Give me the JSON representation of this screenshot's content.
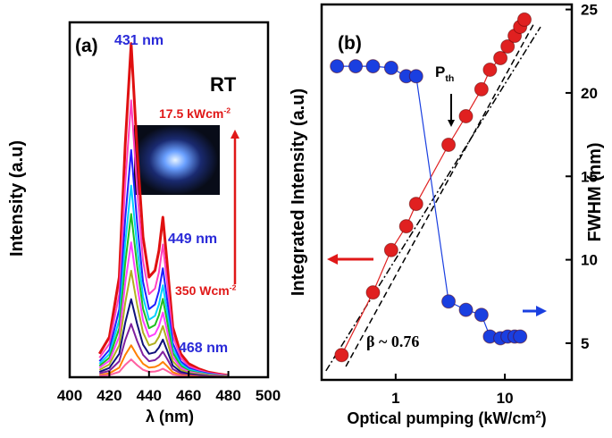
{
  "chart_data": [
    {
      "type": "line",
      "ylabel": "Intensity (a.u)",
      "xlabel": "λ (nm)",
      "xlim": [
        400,
        500
      ],
      "xticks": [
        400,
        420,
        440,
        460,
        480,
        500
      ],
      "ylim": [
        0,
        100
      ],
      "annotations": [
        {
          "text": "(a)",
          "color": "#000000"
        },
        {
          "text": "431 nm",
          "color": "#2a2ad8"
        },
        {
          "text": "RT",
          "color": "#000000"
        },
        {
          "text": "17.5 kWcm",
          "sup": "-2",
          "color": "#e01818"
        },
        {
          "text": "449 nm",
          "color": "#2a2ad8"
        },
        {
          "text": "350 Wcm",
          "sup": "-2",
          "color": "#e01818"
        },
        {
          "text": "468 nm",
          "color": "#2a2ad8"
        }
      ],
      "x": [
        415,
        420,
        425,
        428,
        431,
        434,
        437,
        440,
        443,
        445,
        447,
        449,
        452,
        456,
        460,
        465,
        470,
        475,
        480
      ],
      "series": [
        {
          "color": "#e01010",
          "width": 3,
          "values": [
            6.6,
            11.3,
            28.2,
            65.8,
            94,
            63.9,
            39.5,
            28.2,
            30.1,
            35.7,
            45.1,
            32.9,
            14.1,
            6.6,
            3.8,
            2.4,
            1.4,
            0.9,
            0.5
          ]
        },
        {
          "color": "#ff40c0",
          "width": 2,
          "values": [
            5.5,
            9.4,
            23.4,
            54.6,
            78,
            53.0,
            32.8,
            23.4,
            25.0,
            29.6,
            37.4,
            27.3,
            11.7,
            5.5,
            3.1,
            2.0,
            1.2,
            0.8,
            0.4
          ]
        },
        {
          "color": "#2020ff",
          "width": 2,
          "values": [
            4.5,
            7.7,
            19.2,
            44.8,
            64,
            43.5,
            26.9,
            19.2,
            20.5,
            24.3,
            30.7,
            22.4,
            9.6,
            4.5,
            2.6,
            1.6,
            1.0,
            0.6,
            0.3
          ]
        },
        {
          "color": "#00d0ff",
          "width": 2,
          "values": [
            3.8,
            6.5,
            16.2,
            37.8,
            54,
            36.7,
            22.7,
            16.2,
            17.3,
            20.5,
            25.9,
            18.9,
            8.1,
            3.8,
            2.2,
            1.4,
            0.8,
            0.5,
            0.3
          ]
        },
        {
          "color": "#20c020",
          "width": 2,
          "values": [
            3.2,
            5.5,
            13.8,
            32.2,
            46,
            31.3,
            19.3,
            13.8,
            14.7,
            17.5,
            22.1,
            16.1,
            6.9,
            3.2,
            1.8,
            1.2,
            0.7,
            0.5,
            0.2
          ]
        },
        {
          "color": "#ff40ff",
          "width": 2,
          "values": [
            2.7,
            4.6,
            11.4,
            26.6,
            38,
            25.8,
            16.0,
            11.4,
            12.2,
            14.4,
            18.2,
            13.3,
            5.7,
            2.7,
            1.5,
            1.0,
            0.6,
            0.4,
            0.2
          ]
        },
        {
          "color": "#b0b020",
          "width": 2,
          "values": [
            2.1,
            3.6,
            9.0,
            21.0,
            30,
            20.4,
            12.6,
            9.0,
            9.6,
            11.4,
            14.4,
            10.5,
            4.5,
            2.1,
            1.2,
            0.8,
            0.5,
            0.3,
            0.2
          ]
        },
        {
          "color": "#10107a",
          "width": 2,
          "values": [
            1.5,
            2.6,
            6.6,
            15.4,
            22,
            15.0,
            9.2,
            6.6,
            7.0,
            8.4,
            10.6,
            7.7,
            3.3,
            1.5,
            0.9,
            0.6,
            0.3,
            0.2,
            0.1
          ]
        },
        {
          "color": "#8020a0",
          "width": 2,
          "values": [
            1.1,
            1.8,
            4.5,
            10.5,
            15,
            10.2,
            6.3,
            4.5,
            4.8,
            5.7,
            7.2,
            5.3,
            2.3,
            1.1,
            0.6,
            0.4,
            0.2,
            0.2,
            0.1
          ]
        },
        {
          "color": "#ff8000",
          "width": 2,
          "values": [
            0.6,
            1.1,
            2.7,
            6.3,
            9,
            6.1,
            3.8,
            2.7,
            2.9,
            3.4,
            4.3,
            3.2,
            1.4,
            0.6,
            0.4,
            0.2,
            0.1,
            0.1,
            0.0
          ]
        },
        {
          "color": "#ff60a0",
          "width": 2,
          "values": [
            0.4,
            0.6,
            1.5,
            3.5,
            5,
            3.4,
            2.1,
            1.5,
            1.6,
            1.9,
            2.4,
            1.8,
            0.8,
            0.4,
            0.2,
            0.1,
            0.1,
            0.1,
            0.0
          ]
        }
      ]
    },
    {
      "type": "line",
      "ylabel": "Integrated Intensity (a.u)",
      "y2label": "FWHM (nm)",
      "xlabel": {
        "text": "Optical pumping (kW/cm",
        "sup": "2",
        "tail": ")"
      },
      "xscale": "log",
      "yscale": "log",
      "xlim": [
        0.21,
        41
      ],
      "xticks": [
        1,
        10
      ],
      "ylim": [
        1,
        1000
      ],
      "y2lim": [
        2.8,
        25.3
      ],
      "y2ticks": [
        5,
        10,
        15,
        20,
        25
      ],
      "annotations": [
        {
          "text": "(b)",
          "color": "#000000"
        },
        {
          "text": "P",
          "sub": "th",
          "color": "#000000"
        },
        {
          "text": "β ~ 0.76",
          "color": "#000000"
        }
      ],
      "series": [
        {
          "color": "#000000",
          "axis": "y",
          "width": 1.5,
          "dash": "8 3 2 3",
          "x": [
            0.23,
            21.2
          ],
          "values": [
            1.18,
            662
          ]
        },
        {
          "color": "#000000",
          "axis": "y",
          "width": 1.5,
          "dash": "7 4",
          "x": [
            0.35,
            18.7
          ],
          "values": [
            1.28,
            719
          ]
        },
        {
          "color": "#e02020",
          "axis": "y",
          "width": 1.2,
          "markers": true,
          "x": [
            0.32,
            0.62,
            0.91,
            1.25,
            1.54,
            3.05,
            4.4,
            6.1,
            7.3,
            9.1,
            10.6,
            12.3,
            13.8,
            15.1
          ],
          "values": [
            1.58,
            5.0,
            10.9,
            16.9,
            25.5,
            75.6,
            128,
            210,
            301,
            373,
            462,
            562,
            663,
            757
          ]
        },
        {
          "color": "#1a3fe0",
          "axis": "y2",
          "width": 1.2,
          "markers": true,
          "x": [
            0.29,
            0.43,
            0.62,
            0.91,
            1.25,
            1.54,
            3.05,
            4.4,
            6.1,
            7.3,
            9.1,
            10.6,
            12.3,
            13.8
          ],
          "values": [
            21.6,
            21.6,
            21.6,
            21.5,
            21.0,
            21.0,
            7.5,
            7.0,
            6.7,
            5.4,
            5.3,
            5.4,
            5.4,
            5.4
          ]
        }
      ]
    }
  ]
}
